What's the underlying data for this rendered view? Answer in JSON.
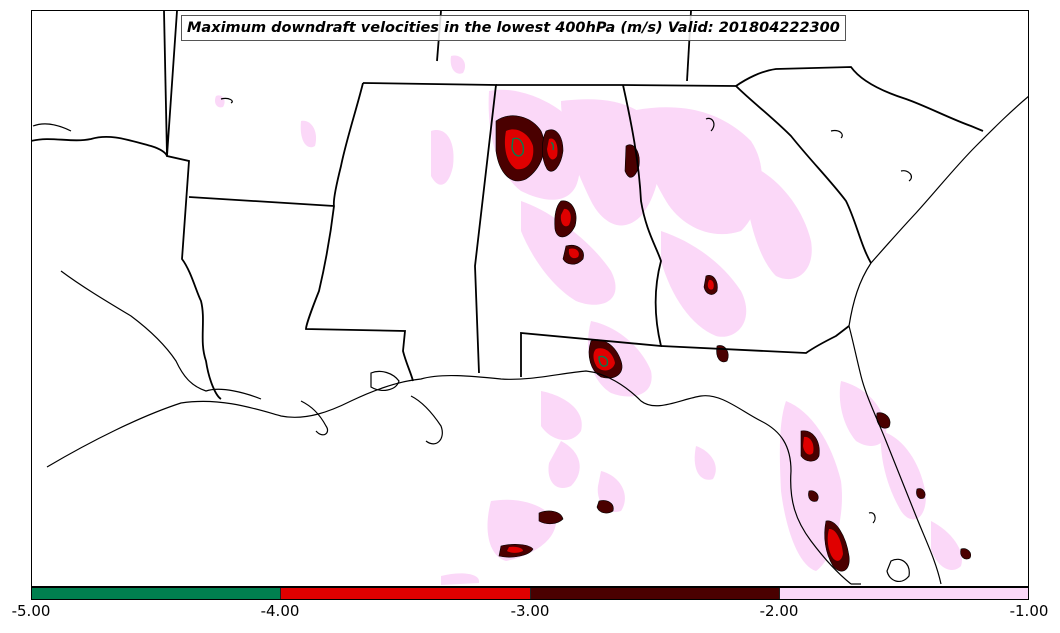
{
  "map": {
    "title": "Maximum downdraft velocities in the lowest 400hPa (m/s) Valid: 201804222300",
    "regions": [
      "Louisiana",
      "Mississippi",
      "Alabama",
      "Georgia",
      "South Carolina",
      "Florida",
      "Arkansas",
      "Tennessee",
      "Texas"
    ],
    "colors": {
      "border": "#000000",
      "coast": "#000000",
      "level_-5_-4": "#007f4f",
      "level_-4_-3": "#e00000",
      "level_-3_-2": "#4a0000",
      "level_-2_-1": "#fbd8f8"
    }
  },
  "colorbar": {
    "segments": [
      {
        "from": -5.0,
        "to": -4.0,
        "color": "#007f4f"
      },
      {
        "from": -4.0,
        "to": -3.0,
        "color": "#e00000"
      },
      {
        "from": -3.0,
        "to": -2.0,
        "color": "#4a0000"
      },
      {
        "from": -2.0,
        "to": -1.0,
        "color": "#fbd8f8"
      }
    ],
    "tick_labels": [
      "-5.00",
      "-4.00",
      "-3.00",
      "-2.00",
      "-1.00"
    ]
  }
}
